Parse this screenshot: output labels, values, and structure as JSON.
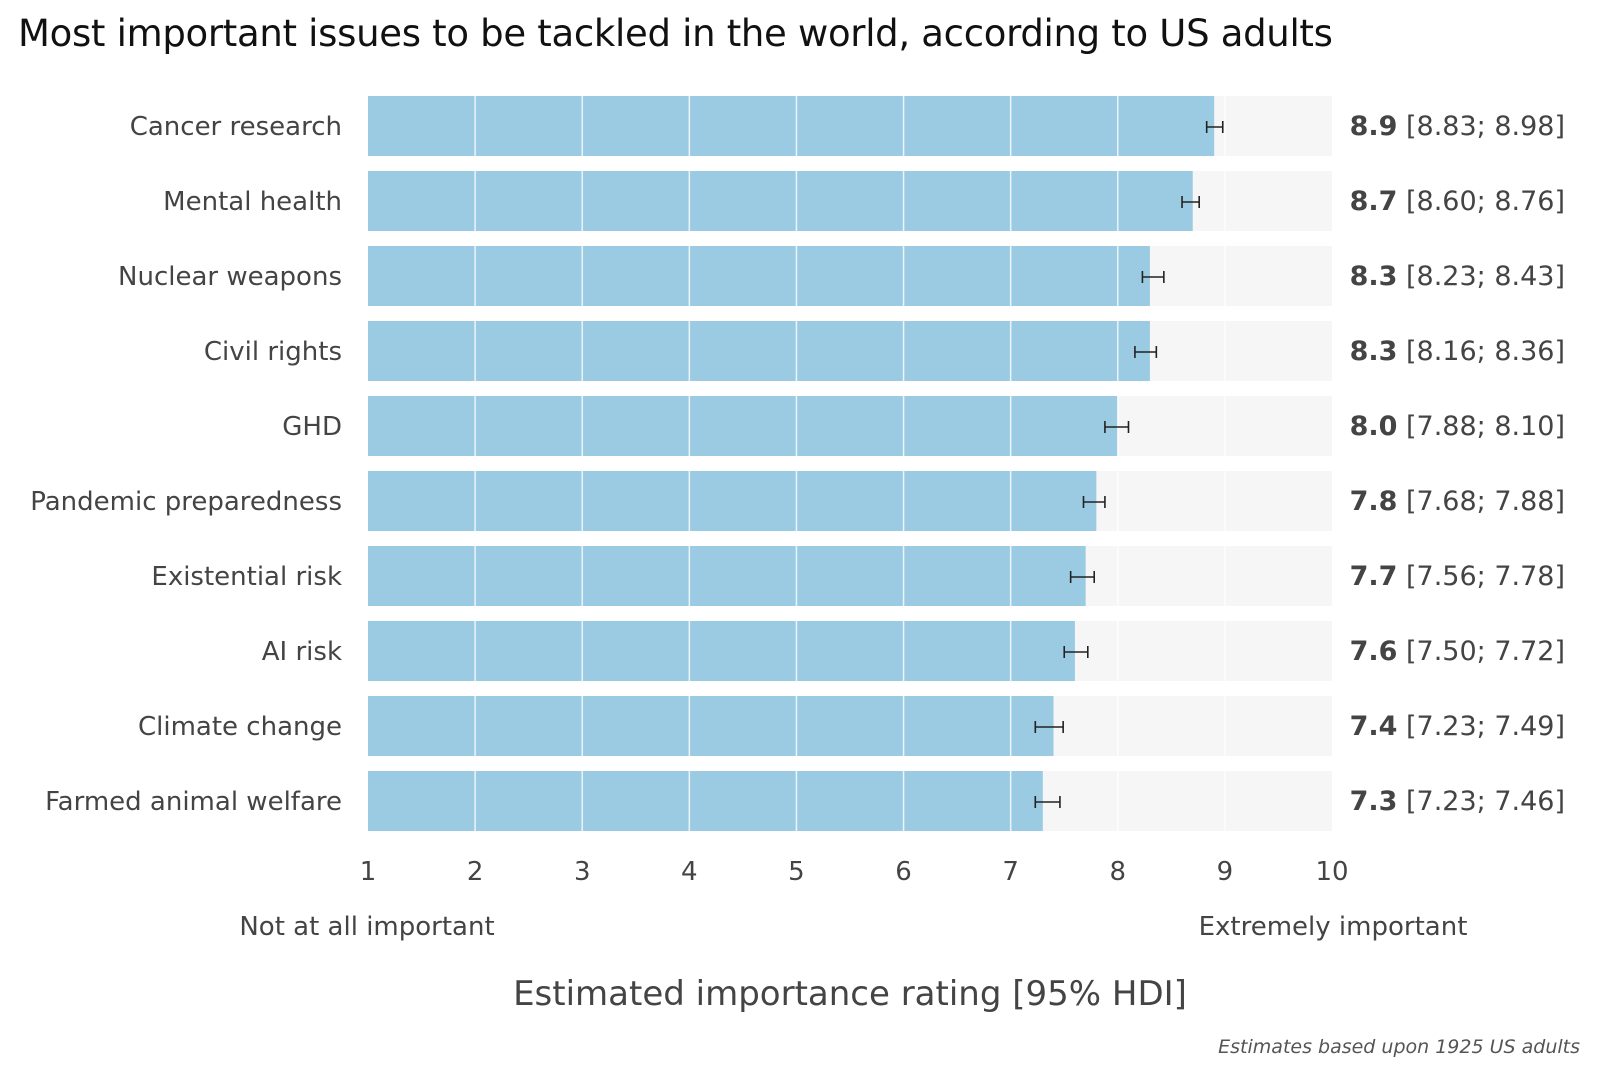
{
  "chart_data": {
    "type": "bar",
    "orientation": "horizontal",
    "title": "Most important issues to be tackled in the world, according to US adults",
    "xlabel": "Estimated importance rating [95% HDI]",
    "xlim": [
      1,
      10
    ],
    "x_ticks": [
      "1",
      "2",
      "3",
      "4",
      "5",
      "6",
      "7",
      "8",
      "9",
      "10"
    ],
    "x_tick_values": [
      1,
      2,
      3,
      4,
      5,
      6,
      7,
      8,
      9,
      10
    ],
    "scale_low_label": "Not at all important",
    "scale_high_label": "Extremely important",
    "note": "Estimates based upon 1925 US adults",
    "categories": [
      "Cancer research",
      "Mental health",
      "Nuclear weapons",
      "Civil rights",
      "GHD",
      "Pandemic preparedness",
      "Existential risk",
      "AI risk",
      "Climate change",
      "Farmed animal welfare"
    ],
    "values": [
      8.9,
      8.7,
      8.3,
      8.3,
      8.0,
      7.8,
      7.7,
      7.6,
      7.4,
      7.3
    ],
    "value_labels": [
      "8.9",
      "8.7",
      "8.3",
      "8.3",
      "8.0",
      "7.8",
      "7.7",
      "7.6",
      "7.4",
      "7.3"
    ],
    "ci_labels": [
      "[8.83; 8.98]",
      "[8.60; 8.76]",
      "[8.23; 8.43]",
      "[8.16; 8.36]",
      "[7.88; 8.10]",
      "[7.68; 7.88]",
      "[7.56; 7.78]",
      "[7.50; 7.72]",
      "[7.23; 7.49]",
      "[7.23; 7.46]"
    ],
    "ci_low": [
      8.83,
      8.6,
      8.23,
      8.16,
      7.88,
      7.68,
      7.56,
      7.5,
      7.23,
      7.23
    ],
    "ci_high": [
      8.98,
      8.76,
      8.43,
      8.36,
      8.1,
      7.88,
      7.78,
      7.72,
      7.49,
      7.46
    ],
    "colors": {
      "bar": "#9acbe3",
      "track": "#f6f6f6",
      "grid": "#ffffff",
      "error": "#222222",
      "text": "#444444"
    }
  }
}
